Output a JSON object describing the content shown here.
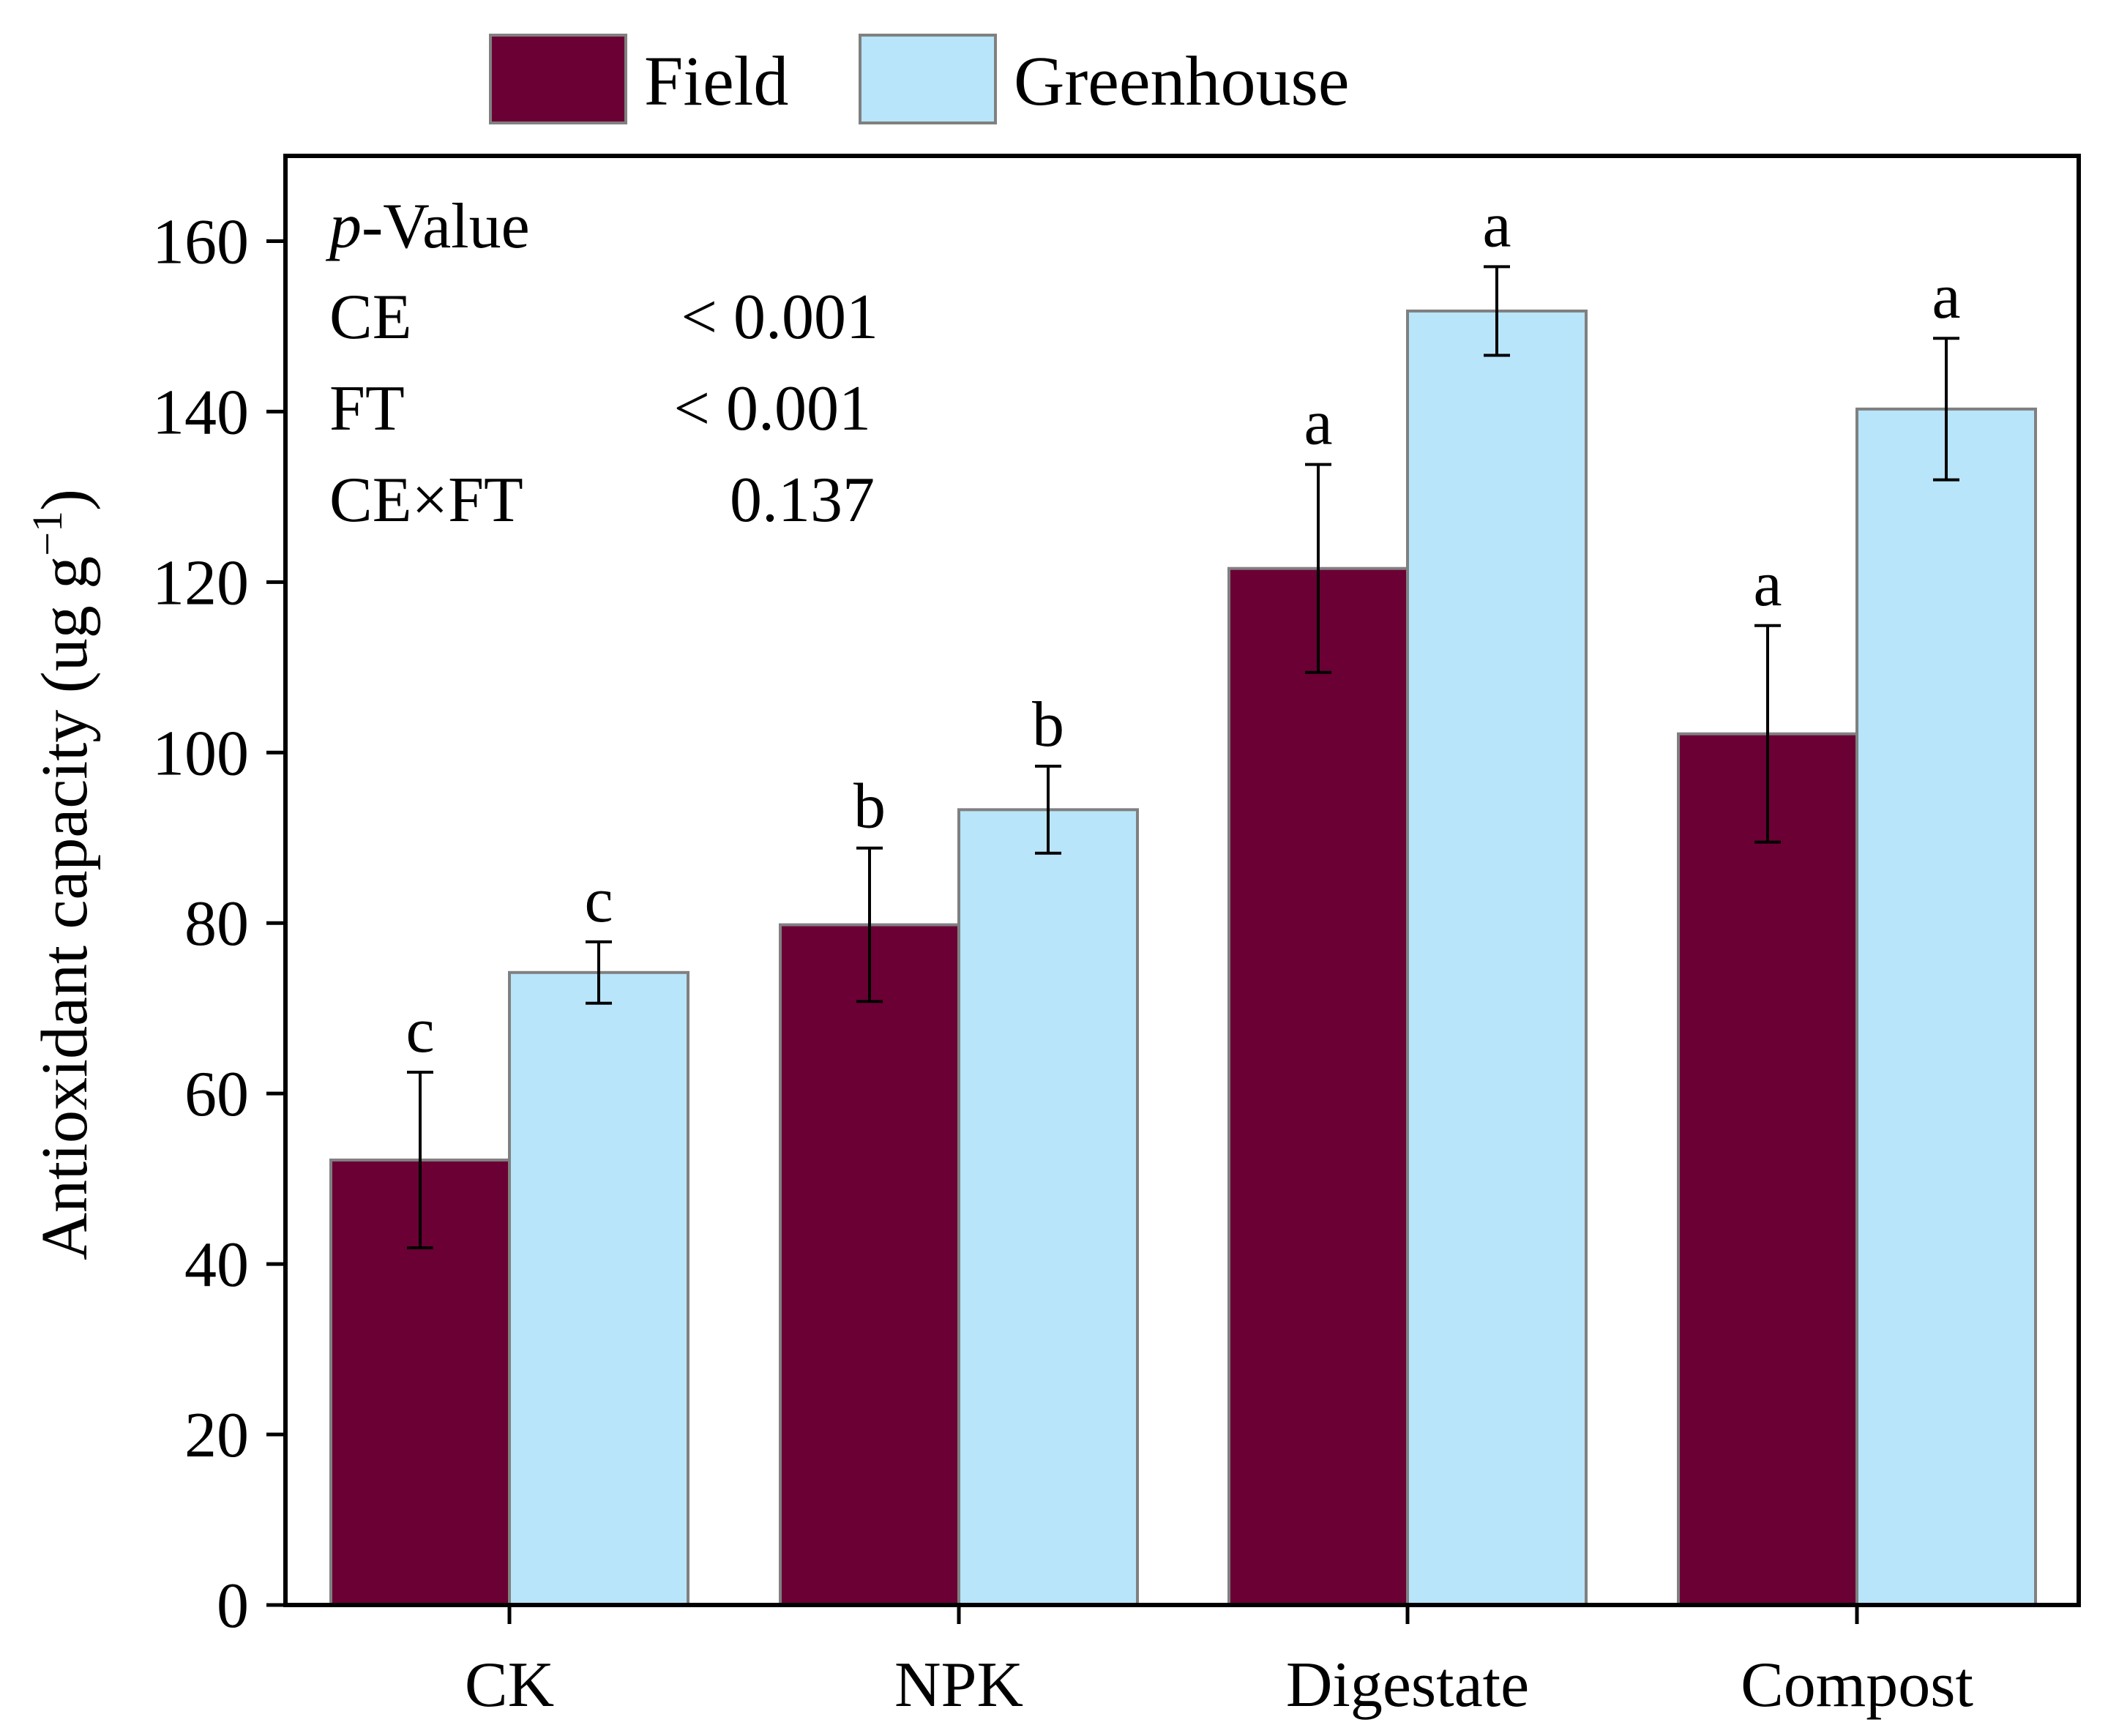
{
  "chart_data": {
    "type": "bar",
    "categories": [
      "CK",
      "NPK",
      "Digestate",
      "Compost"
    ],
    "series": [
      {
        "name": "Field",
        "color": "#6b0035",
        "values": [
          52.2,
          79.8,
          121.6,
          102.2
        ],
        "errors": [
          10.3,
          9.0,
          12.2,
          12.7
        ],
        "letters": [
          "c",
          "b",
          "a",
          "a"
        ]
      },
      {
        "name": "Greenhouse",
        "color": "#b8e5fa",
        "values": [
          74.2,
          93.3,
          151.8,
          140.3
        ],
        "errors": [
          3.6,
          5.1,
          5.2,
          8.3
        ],
        "letters": [
          "c",
          "b",
          "a",
          "a"
        ]
      }
    ],
    "xlabel": "",
    "ylabel": "Antioxidant capacity (ug g",
    "ylabel_superscript": "−1",
    "ylabel_suffix": ")",
    "ylim": [
      0,
      170
    ],
    "yticks": [
      0,
      20,
      40,
      60,
      80,
      100,
      120,
      140,
      160
    ],
    "grid": false,
    "legend_position": "top-center",
    "bar_stroke_color": "#808080",
    "stats": {
      "title_italic": "p",
      "title_rest": "-Value",
      "rows": [
        {
          "label": "CE",
          "value": "< 0.001"
        },
        {
          "label": "FT",
          "value": "< 0.001"
        },
        {
          "label": "CE×FT",
          "value": "0.137"
        }
      ]
    }
  }
}
